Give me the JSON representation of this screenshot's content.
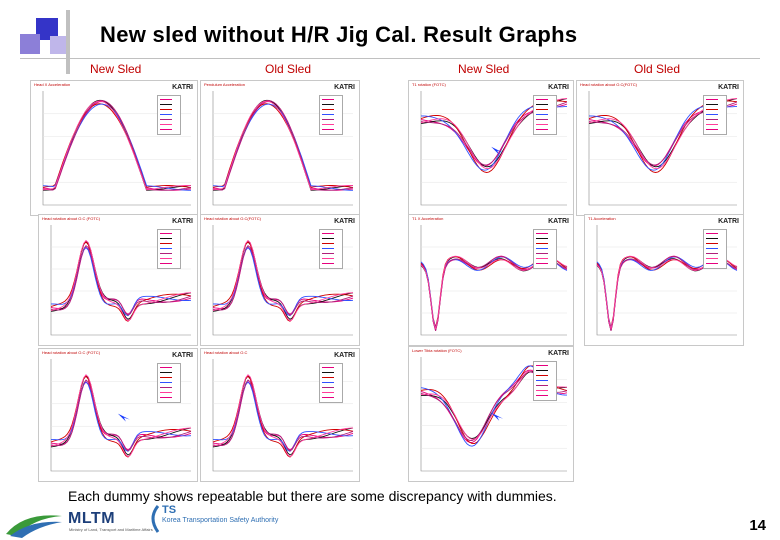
{
  "slide": {
    "title": "New sled without H/R Jig Cal. Result Graphs",
    "column_labels": [
      "New Sled",
      "Old Sled",
      "New Sled",
      "Old Sled"
    ],
    "caption": "Each dummy shows repeatable but there are some discrepancy with dummies.",
    "page_number": "14"
  },
  "footer": {
    "mltm_logo": "MLTM",
    "mltm_subtitle": "Ministry of Land, Transport and Maritime Affairs",
    "ts_logo": "TS",
    "ts_subtitle": "Korea Transportation Safety Authority"
  },
  "panels": [
    {
      "id": "p1",
      "title": "Head X Acceleration",
      "logo": "KATRI",
      "curve": "accel",
      "arrow": false
    },
    {
      "id": "p2",
      "title": "Pendulum Acceleration",
      "logo": "KATRI",
      "curve": "accel",
      "arrow": false
    },
    {
      "id": "p3",
      "title": "T1 rotation (FOTC)",
      "logo": "KATRI",
      "curve": "dip",
      "arrow": true
    },
    {
      "id": "p4",
      "title": "Head rotation about O.C(FOTC)",
      "logo": "KATRI",
      "curve": "dip",
      "arrow": false
    },
    {
      "id": "p5",
      "title": "Head rotation about O.C (FOTC)",
      "logo": "KATRI",
      "curve": "bump",
      "arrow": false
    },
    {
      "id": "p6",
      "title": "Head rotation about O.C(FOTC)",
      "logo": "KATRI",
      "curve": "bump",
      "arrow": false
    },
    {
      "id": "p7",
      "title": "T1 X Acceleration",
      "logo": "KATRI",
      "curve": "spike",
      "arrow": false
    },
    {
      "id": "p8",
      "title": "T1 Acceleration",
      "logo": "KATRI",
      "curve": "spike",
      "arrow": false
    },
    {
      "id": "p9",
      "title": "Head rotation about O.C (FOTC)",
      "logo": "KATRI",
      "curve": "bump",
      "arrow": true
    },
    {
      "id": "p10",
      "title": "Head rotation about O.C",
      "logo": "KATRI",
      "curve": "bump",
      "arrow": false
    },
    {
      "id": "p11",
      "title": "Lower Tibia rotation (FOTC)",
      "logo": "KATRI",
      "curve": "wave",
      "arrow": true
    }
  ],
  "colors": {
    "title_red": "#c00000",
    "blue_bar": "#3b3bcc",
    "purple_bar": "#8f7fd6",
    "series_pink": "#e6007e",
    "series_black": "#111111",
    "series_red": "#d00000",
    "series_blue": "#3050ff"
  }
}
